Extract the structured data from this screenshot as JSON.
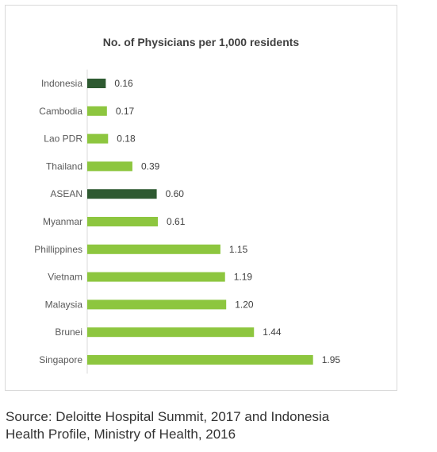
{
  "chart_data": {
    "type": "bar",
    "orientation": "horizontal",
    "title": "No. of Physicians per 1,000 residents",
    "xlabel": "",
    "ylabel": "",
    "xlim": [
      0,
      2.0
    ],
    "grid": false,
    "categories": [
      "Indonesia",
      "Cambodia",
      "Lao PDR",
      "Thailand",
      "ASEAN",
      "Myanmar",
      "Phillippines",
      "Vietnam",
      "Malaysia",
      "Brunei",
      "Singapore"
    ],
    "values": [
      0.16,
      0.17,
      0.18,
      0.39,
      0.6,
      0.61,
      1.15,
      1.19,
      1.2,
      1.44,
      1.95
    ],
    "value_labels": [
      "0.16",
      "0.17",
      "0.18",
      "0.39",
      "0.60",
      "0.61",
      "1.15",
      "1.19",
      "1.20",
      "1.44",
      "1.95"
    ],
    "highlighted": [
      "Indonesia",
      "ASEAN"
    ],
    "colors": {
      "default": "#8dc63f",
      "highlight": "#2e5a31",
      "axis": "#d9d9d9",
      "text": "#595959"
    }
  },
  "caption": {
    "line1": "Source: Deloitte Hospital Summit, 2017 and Indonesia",
    "line2": "Health Profile, Ministry of Health, 2016"
  }
}
